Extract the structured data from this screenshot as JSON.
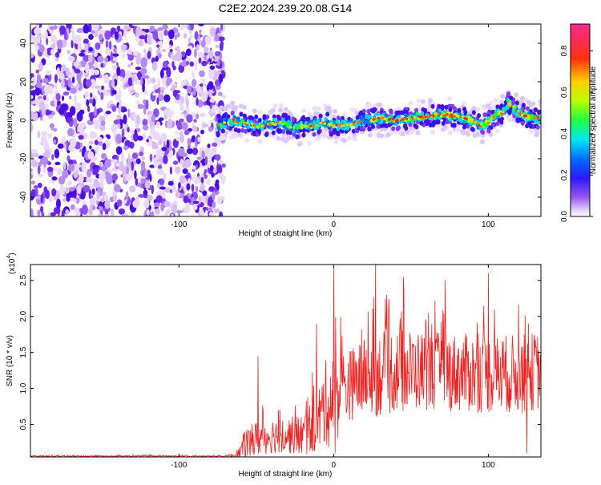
{
  "title": "C2E2.2024.239.20.08.G14",
  "colors": {
    "snr_line": "#ee2222",
    "colormap": [
      "#ffffff",
      "#e9d9fb",
      "#7a3ff0",
      "#4a0ddf",
      "#1020ff",
      "#00cfff",
      "#20ff30",
      "#ffee00",
      "#ff2020",
      "#ff2a8a"
    ]
  },
  "chart_data": [
    {
      "type": "heatmap",
      "xlabel": "Height of straight line (km)",
      "ylabel": "Frequency (Hz)",
      "xlim": [
        -196,
        134
      ],
      "ylim": [
        -50,
        50
      ],
      "xticks": [
        {
          "value": -100,
          "label": "-100"
        },
        {
          "value": 0,
          "label": "0"
        },
        {
          "value": 100,
          "label": "100"
        }
      ],
      "yticks": [
        {
          "value": -40,
          "label": "-40"
        },
        {
          "value": -20,
          "label": "-20"
        },
        {
          "value": 0,
          "label": "0"
        },
        {
          "value": 20,
          "label": "20"
        },
        {
          "value": 40,
          "label": "40"
        }
      ],
      "noise_region_x": [
        -196,
        -75
      ],
      "signal_track": {
        "x": [
          -75,
          -65,
          -55,
          -45,
          -35,
          -25,
          -15,
          -5,
          0,
          10,
          20,
          30,
          40,
          50,
          60,
          70,
          80,
          85,
          90,
          95,
          100,
          105,
          110,
          113,
          118,
          125,
          134
        ],
        "y": [
          -3,
          0,
          -2,
          -3,
          -1,
          -4,
          -3,
          -1,
          -3,
          -2,
          0,
          1,
          0,
          1,
          2,
          3,
          2,
          1,
          0,
          -3,
          -1,
          3,
          4,
          9,
          5,
          2,
          1
        ]
      },
      "colorbar": {
        "label": "Normalized spectral amplitude",
        "range": [
          0,
          0.93
        ],
        "ticks": [
          {
            "value": 0.0,
            "label": "0.0"
          },
          {
            "value": 0.2,
            "label": "0.2"
          },
          {
            "value": 0.4,
            "label": "0.4"
          },
          {
            "value": 0.6,
            "label": "0.6"
          },
          {
            "value": 0.8,
            "label": "0.8"
          }
        ]
      }
    },
    {
      "type": "line",
      "xlabel": "Height of straight line (km)",
      "ylabel": "SNR (10 * v/v)",
      "multiplier_label": "(x10",
      "multiplier_exp": "4",
      "multiplier_close": ")",
      "xlim": [
        -196,
        134
      ],
      "ylim": [
        0.05,
        2.72
      ],
      "xticks": [
        {
          "value": -100,
          "label": "-100"
        },
        {
          "value": 0,
          "label": "0"
        },
        {
          "value": 100,
          "label": "100"
        }
      ],
      "yticks": [
        {
          "value": 0.5,
          "label": "0.5"
        },
        {
          "value": 1.0,
          "label": "1.0"
        },
        {
          "value": 1.5,
          "label": "1.5"
        },
        {
          "value": 2.0,
          "label": "2.0"
        },
        {
          "value": 2.5,
          "label": "2.5"
        }
      ],
      "series": [
        {
          "envelope_x": [
            -196,
            -70,
            -62,
            -58,
            -50,
            -40,
            -30,
            -20,
            -10,
            -5,
            0,
            5,
            10,
            20,
            30,
            40,
            60,
            80,
            100,
            120,
            134
          ],
          "envelope_mean": [
            0.06,
            0.06,
            0.08,
            0.2,
            0.3,
            0.35,
            0.35,
            0.35,
            0.55,
            0.8,
            0.8,
            1.0,
            1.05,
            1.15,
            1.2,
            1.25,
            1.25,
            1.22,
            1.2,
            1.2,
            1.25
          ],
          "envelope_spread": [
            0.01,
            0.01,
            0.05,
            0.2,
            0.25,
            0.25,
            0.25,
            0.3,
            0.45,
            0.6,
            0.7,
            0.55,
            0.5,
            0.55,
            0.6,
            0.6,
            0.55,
            0.55,
            0.55,
            0.55,
            0.55
          ],
          "peaks": [
            {
              "x": -49,
              "y": 1.45
            },
            {
              "x": -11,
              "y": 1.9
            },
            {
              "x": 0,
              "y": 2.68
            },
            {
              "x": 1,
              "y": 0.1
            },
            {
              "x": 27,
              "y": 2.72
            },
            {
              "x": 45,
              "y": 2.55
            },
            {
              "x": 72,
              "y": 2.5
            },
            {
              "x": 100,
              "y": 2.6
            },
            {
              "x": 125,
              "y": 0.1
            }
          ]
        }
      ]
    }
  ]
}
